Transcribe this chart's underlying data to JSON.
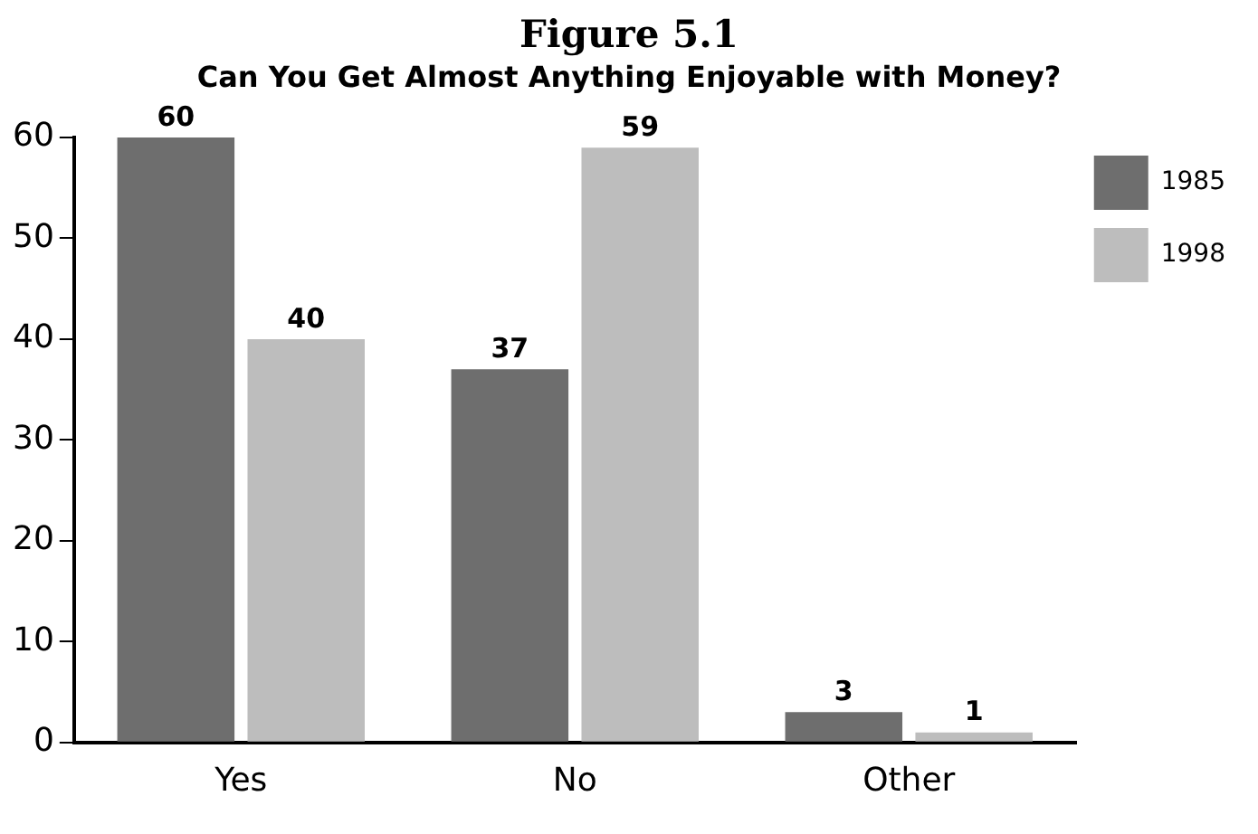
{
  "chart_data": {
    "type": "bar",
    "title": "Figure 5.1",
    "subtitle": "Can You Get Almost Anything Enjoyable with Money?",
    "categories": [
      "Yes",
      "No",
      "Other"
    ],
    "series": [
      {
        "name": "1985",
        "color": "#6e6e6e",
        "values": [
          60,
          37,
          3
        ]
      },
      {
        "name": "1998",
        "color": "#bdbdbd",
        "values": [
          40,
          59,
          1
        ]
      }
    ],
    "ylim": [
      0,
      60
    ],
    "yticks": [
      0,
      10,
      20,
      30,
      40,
      50,
      60
    ],
    "grid": false,
    "legend": "top right",
    "data_labels": true
  }
}
